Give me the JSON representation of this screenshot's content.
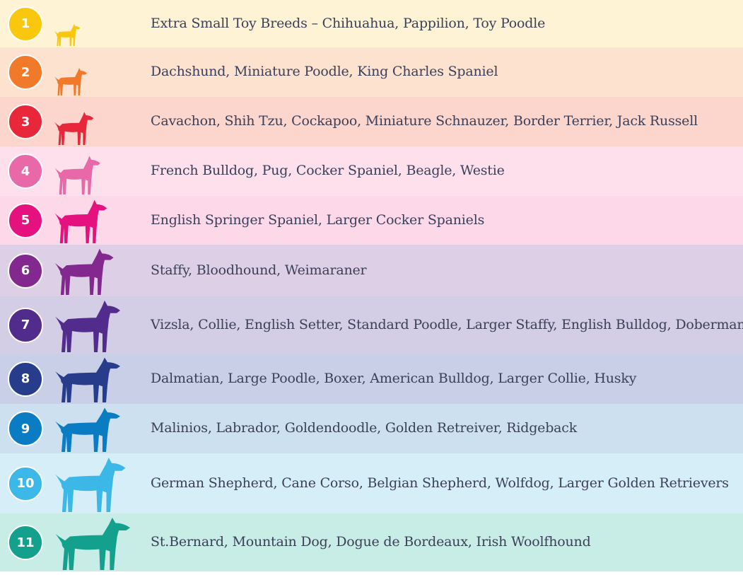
{
  "sizes": [
    {
      "number": "1",
      "icon": "dog-silhouette-chihuahua-icon",
      "breeds": "Extra Small Toy Breeds – Chihuahua, Pappilion, Toy Poodle",
      "bg": "#fff3d6",
      "color": "#f9c80e"
    },
    {
      "number": "2",
      "icon": "dog-silhouette-dachshund-icon",
      "breeds": "Dachshund, Miniature Poodle, King Charles Spaniel",
      "bg": "#fde2d0",
      "color": "#f07a2a"
    },
    {
      "number": "3",
      "icon": "dog-silhouette-schnauzer-icon",
      "breeds": "Cavachon, Shih Tzu, Cockapoo, Miniature Schnauzer, Border Terrier, Jack Russell",
      "bg": "#fcd5cc",
      "color": "#e8283a"
    },
    {
      "number": "4",
      "icon": "dog-silhouette-pug-icon",
      "breeds": "French Bulldog, Pug, Cocker Spaniel, Beagle, Westie",
      "bg": "#fde0ec",
      "color": "#e868a8"
    },
    {
      "number": "5",
      "icon": "dog-silhouette-spaniel-icon",
      "breeds": "English Springer Spaniel, Larger Cocker Spaniels",
      "bg": "#fcd8e8",
      "color": "#e4117e"
    },
    {
      "number": "6",
      "icon": "dog-silhouette-doberman-icon",
      "breeds": "Staffy, Bloodhound, Weimaraner",
      "bg": "#ddd0e6",
      "color": "#83288f"
    },
    {
      "number": "7",
      "icon": "dog-silhouette-setter-icon",
      "breeds": "Vizsla, Collie, English Setter, Standard Poodle, Larger Staffy, English Bulldog, Doberman",
      "bg": "#d3cde6",
      "color": "#522c8c"
    },
    {
      "number": "8",
      "icon": "dog-silhouette-dalmatian-icon",
      "breeds": "Dalmatian, Large Poodle, Boxer, American Bulldog, Larger Collie, Husky",
      "bg": "#c9cfe6",
      "color": "#283c8c"
    },
    {
      "number": "9",
      "icon": "dog-silhouette-labrador-icon",
      "breeds": "Malinios, Labrador, Goldendoodle, Golden Retreiver, Ridgeback",
      "bg": "#cce0f0",
      "color": "#0a7cc4"
    },
    {
      "number": "10",
      "icon": "dog-silhouette-german-shepherd-icon",
      "breeds": "German Shepherd, Cane Corso, Belgian Shepherd, Wolfdog, Larger Golden Retrievers",
      "bg": "#d6eef8",
      "color": "#3bb8e8"
    },
    {
      "number": "11",
      "icon": "dog-silhouette-st-bernard-icon",
      "breeds": "St.Bernard, Mountain Dog, Dogue de Bordeaux, Irish Woolfhound",
      "bg": "#c8ece6",
      "color": "#13a08c"
    }
  ]
}
